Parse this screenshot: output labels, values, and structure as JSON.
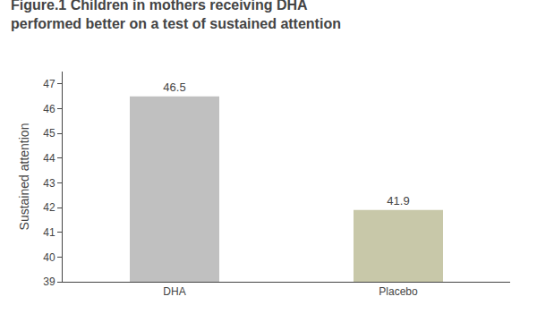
{
  "chart_data": {
    "type": "bar",
    "title": "Figure.1 Children in mothers receiving DHA",
    "subtitle": "performed better on a test of sustained attention",
    "categories": [
      "DHA",
      "Placebo"
    ],
    "values": [
      46.5,
      41.9
    ],
    "colors": [
      "#c0c0c0",
      "#c8c8a9"
    ],
    "ylabel": "Sustained attention",
    "ylim": [
      39,
      47.5
    ],
    "yticks": [
      39,
      40,
      41,
      42,
      43,
      44,
      45,
      46,
      47
    ],
    "grid": false,
    "data_labels": true
  }
}
